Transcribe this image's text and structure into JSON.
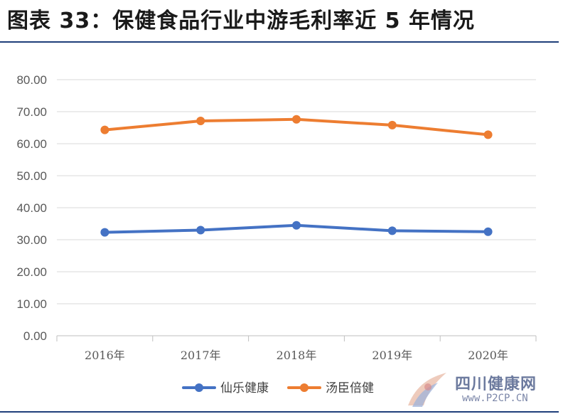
{
  "page_title": "图表 33：保健食品行业中游毛利率近 5 年情况",
  "chart_data": {
    "type": "line",
    "title": "图表 33：保健食品行业中游毛利率近 5 年情况",
    "categories": [
      "2016年",
      "2017年",
      "2018年",
      "2019年",
      "2020年"
    ],
    "ylim": [
      0,
      80
    ],
    "yticks": [
      "0.00",
      "10.00",
      "20.00",
      "30.00",
      "40.00",
      "50.00",
      "60.00",
      "70.00",
      "80.00"
    ],
    "grid": true,
    "legend_position": "bottom",
    "series": [
      {
        "name": "仙乐健康",
        "color": "#4472C4",
        "values": [
          32.3,
          33.0,
          34.5,
          32.8,
          32.5
        ]
      },
      {
        "name": "汤臣倍健",
        "color": "#ED7D31",
        "values": [
          64.3,
          67.1,
          67.6,
          65.8,
          62.8
        ]
      }
    ]
  },
  "watermark": {
    "name": "四川健康网",
    "url": "www.P2CP.CN"
  }
}
